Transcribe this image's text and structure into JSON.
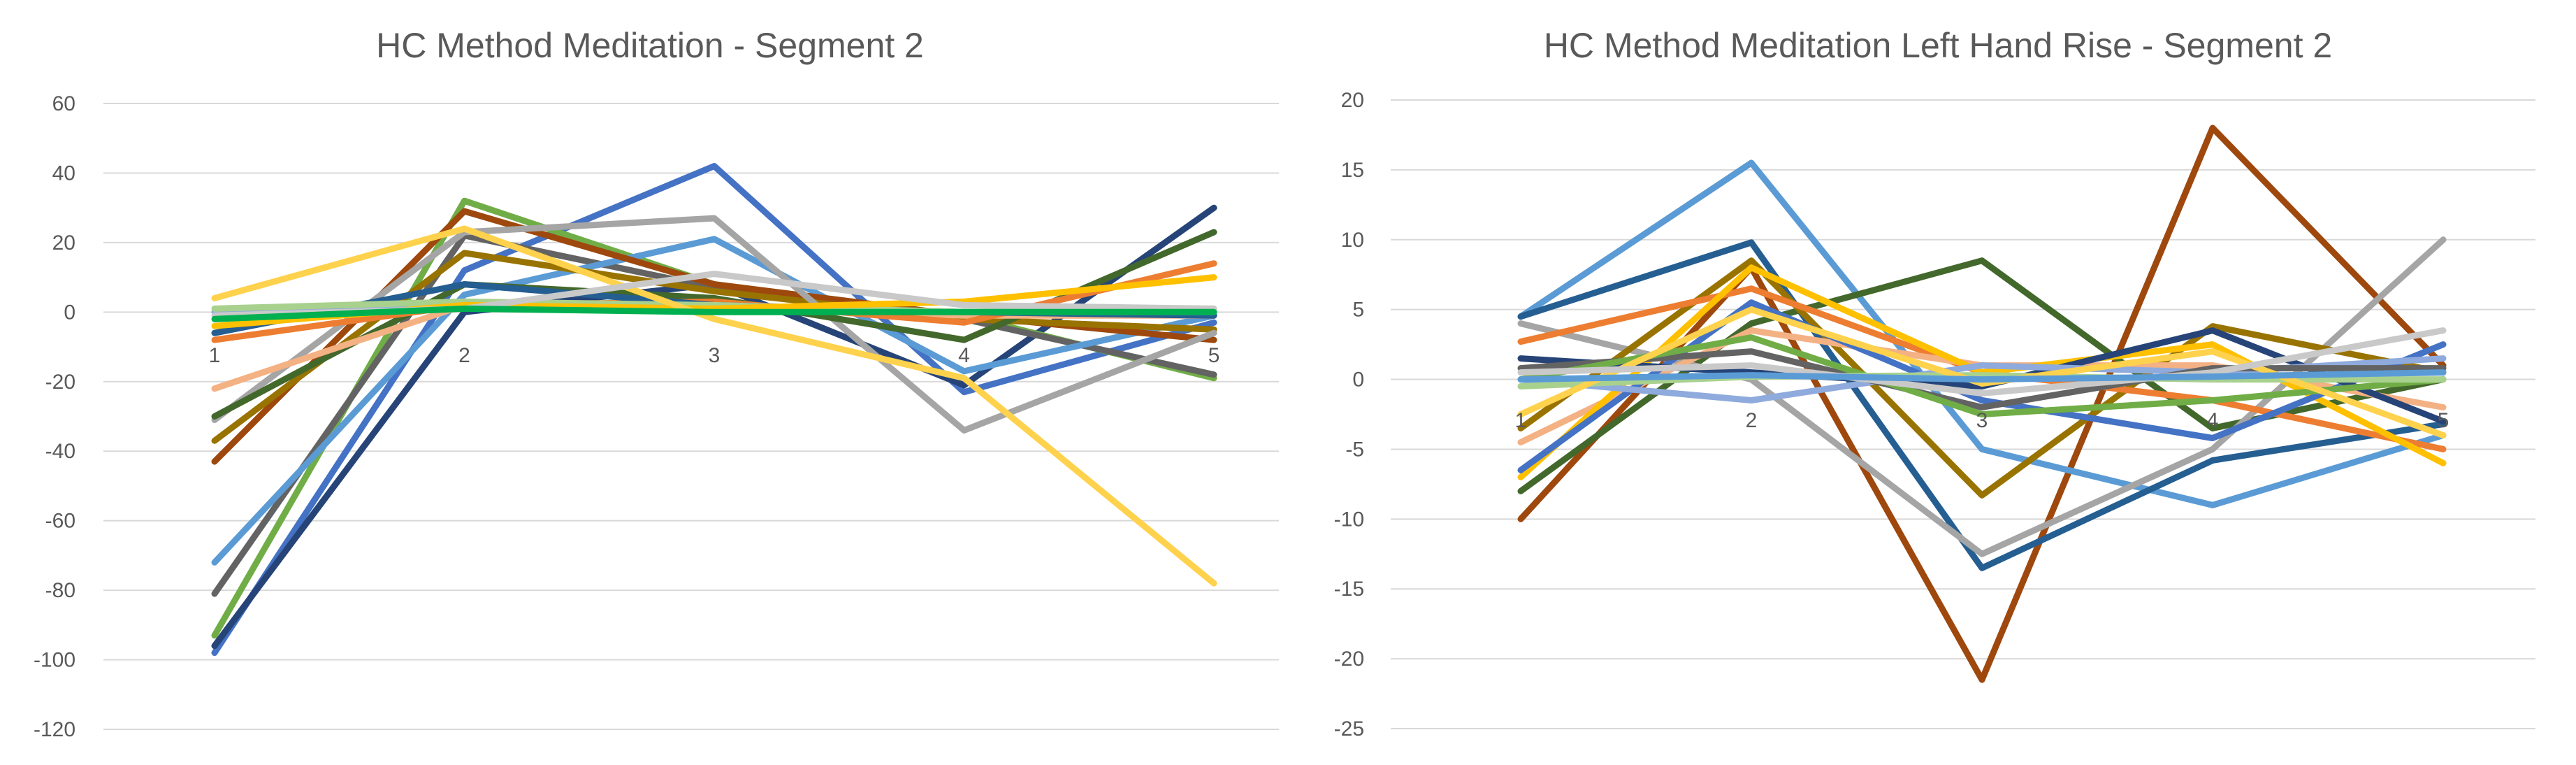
{
  "chart_data": [
    {
      "type": "line",
      "title": "HC Method Meditation - Segment 2",
      "categories": [
        "1",
        "2",
        "3",
        "4",
        "5"
      ],
      "ylim": [
        -120,
        60
      ],
      "yticks": [
        60,
        40,
        20,
        0,
        -20,
        -40,
        -60,
        -80,
        -100,
        -120
      ],
      "xlabel": "",
      "ylabel": "",
      "grid": true,
      "legend": "none",
      "series": [
        {
          "color": "#4472C4",
          "values": [
            -98,
            12,
            42,
            -23,
            -3
          ]
        },
        {
          "color": "#264478",
          "values": [
            -96,
            0,
            8,
            -21,
            30
          ]
        },
        {
          "color": "#70AD47",
          "values": [
            -93,
            32,
            8,
            -1,
            -19
          ]
        },
        {
          "color": "#636363",
          "values": [
            -81,
            22,
            7,
            -2,
            -18
          ]
        },
        {
          "color": "#5B9BD5",
          "values": [
            -72,
            5,
            21,
            -17,
            -1
          ]
        },
        {
          "color": "#9E480E",
          "values": [
            -43,
            29,
            8,
            -1,
            -8
          ]
        },
        {
          "color": "#997300",
          "values": [
            -37,
            17,
            6,
            -2,
            -5
          ]
        },
        {
          "color": "#A5A5A5",
          "values": [
            -31,
            23,
            27,
            -34,
            -6
          ]
        },
        {
          "color": "#43682B",
          "values": [
            -30,
            8,
            4,
            -8,
            23
          ]
        },
        {
          "color": "#F4B183",
          "values": [
            -22,
            2,
            1,
            -1,
            -1
          ]
        },
        {
          "color": "#ED7D31",
          "values": [
            -8,
            2,
            3,
            -3,
            14
          ]
        },
        {
          "color": "#255E91",
          "values": [
            -6,
            8,
            2,
            0,
            -1
          ]
        },
        {
          "color": "#8FAADC",
          "values": [
            0,
            1,
            1,
            0,
            0
          ]
        },
        {
          "color": "#A9D18E",
          "values": [
            1,
            3,
            2,
            0,
            1
          ]
        },
        {
          "color": "#FFC000",
          "values": [
            -4,
            2,
            1,
            3,
            10
          ]
        },
        {
          "color": "#FFD24D",
          "values": [
            4,
            24,
            -2,
            -19,
            -78
          ]
        },
        {
          "color": "#C9C9C9",
          "values": [
            -1,
            1,
            11,
            2,
            1
          ]
        },
        {
          "color": "#00B050",
          "values": [
            -2,
            1,
            0,
            0,
            0
          ]
        }
      ]
    },
    {
      "type": "line",
      "title": "HC Method Meditation Left Hand Rise - Segment 2",
      "categories": [
        "1",
        "2",
        "3",
        "4",
        "5"
      ],
      "ylim": [
        -25,
        20
      ],
      "yticks": [
        20,
        15,
        10,
        5,
        0,
        -5,
        -10,
        -15,
        -20,
        -25
      ],
      "xlabel": "",
      "ylabel": "",
      "grid": true,
      "legend": "none",
      "series": [
        {
          "color": "#9E480E",
          "values": [
            -10,
            8,
            -21.5,
            18,
            1
          ]
        },
        {
          "color": "#5B9BD5",
          "values": [
            4.5,
            15.5,
            -5,
            -9,
            -4
          ]
        },
        {
          "color": "#255E91",
          "values": [
            4.5,
            9.8,
            -13.5,
            -5.8,
            -3.2
          ]
        },
        {
          "color": "#43682B",
          "values": [
            -8,
            4,
            8.5,
            -3.5,
            0
          ]
        },
        {
          "color": "#A5A5A5",
          "values": [
            4,
            0,
            -12.5,
            -5,
            10
          ]
        },
        {
          "color": "#997300",
          "values": [
            -3.5,
            8.5,
            -8.3,
            3.8,
            0.5
          ]
        },
        {
          "color": "#ED7D31",
          "values": [
            2.7,
            6.5,
            0.5,
            -1.5,
            -5
          ]
        },
        {
          "color": "#F4B183",
          "values": [
            -4.5,
            3.5,
            1,
            1,
            -2
          ]
        },
        {
          "color": "#FFC000",
          "values": [
            -7,
            8,
            0.5,
            2.5,
            -6
          ]
        },
        {
          "color": "#4472C4",
          "values": [
            -6.5,
            5.5,
            -1.5,
            -4.2,
            2.5
          ]
        },
        {
          "color": "#264478",
          "values": [
            1.5,
            0.5,
            -0.5,
            3.5,
            -3
          ]
        },
        {
          "color": "#8FAADC",
          "values": [
            0,
            -1.5,
            1,
            0.5,
            1.5
          ]
        },
        {
          "color": "#636363",
          "values": [
            0.8,
            2,
            -2,
            0.8,
            0.8
          ]
        },
        {
          "color": "#70AD47",
          "values": [
            0,
            3,
            -2.5,
            -1.5,
            0
          ]
        },
        {
          "color": "#A9D18E",
          "values": [
            -0.5,
            0.2,
            0.3,
            0,
            0
          ]
        },
        {
          "color": "#FFD24D",
          "values": [
            -2.5,
            5,
            -0.3,
            2,
            -4
          ]
        },
        {
          "color": "#C9C9C9",
          "values": [
            0.5,
            1,
            -1,
            0.5,
            3.5
          ]
        },
        {
          "color": "#5B9BD5",
          "values": [
            0,
            0.3,
            0,
            0.2,
            0.5
          ]
        }
      ]
    }
  ]
}
